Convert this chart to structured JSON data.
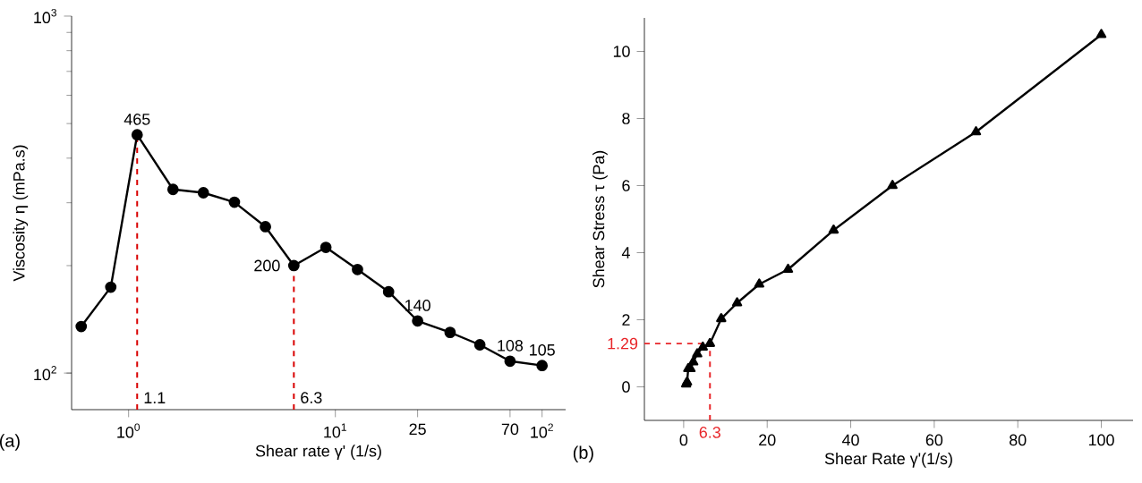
{
  "chart_data": [
    {
      "type": "line",
      "xlabel": "Shear rate γ' (1/s)",
      "ylabel": "Viscosity η (mPa.s)",
      "log": "xy",
      "marker": "circle",
      "line_style": "solid",
      "x": [
        0.59,
        0.82,
        1.1,
        1.64,
        2.3,
        3.25,
        4.59,
        6.3,
        9.0,
        12.8,
        18.1,
        25,
        35.9,
        50,
        70,
        100
      ],
      "series": [
        {
          "color": "#000000",
          "values": [
            135,
            174,
            465,
            327,
            320,
            301,
            257,
            200,
            225,
            195,
            169,
            140,
            130,
            120,
            108,
            105
          ],
          "value_labels": [
            null,
            null,
            "465",
            null,
            null,
            null,
            null,
            "200",
            null,
            null,
            null,
            "140",
            null,
            null,
            "108",
            "105"
          ]
        }
      ],
      "xlim": [
        0.53,
        130
      ],
      "ylim": [
        79,
        1000
      ],
      "xticks": [
        {
          "value": 1,
          "label": "10$^{0}$"
        },
        {
          "value": 10,
          "label": "10$^{1}$"
        },
        {
          "value": 100,
          "label": "10$^{2}$"
        },
        25,
        70
      ],
      "yticks": [
        {
          "value": 100,
          "label": "10$^{2}$"
        },
        {
          "value": 1000,
          "label": "10$^{3}$"
        }
      ],
      "annotations": [
        "(a)",
        {
          "text": "1.1",
          "x": 1.1,
          "y": 465
        },
        {
          "text": "6.3",
          "x": 6.3,
          "y": 200
        }
      ]
    },
    {
      "type": "line",
      "xlabel": "Shear Rate γ'(1/s)",
      "ylabel": "Shear Stress τ (Pa)",
      "marker": "triangle",
      "line_style": "solid",
      "x": [
        0.59,
        0.82,
        1.1,
        1.64,
        2.3,
        3.25,
        4.59,
        6.3,
        9.0,
        12.8,
        18.1,
        25,
        35.9,
        50,
        70,
        100
      ],
      "series": [
        {
          "color": "#000000",
          "values": [
            0.08,
            0.14,
            0.54,
            0.54,
            0.74,
            0.98,
            1.18,
            1.29,
            2.03,
            2.5,
            3.06,
            3.5,
            4.67,
            6.0,
            7.6,
            10.5
          ]
        }
      ],
      "xlim": [
        -9.4,
        107.6
      ],
      "ylim": [
        -1,
        11
      ],
      "xticks": [
        0,
        20,
        40,
        60,
        80,
        100
      ],
      "yticks": [
        0,
        2,
        4,
        6,
        8,
        10
      ],
      "ref_lines": [
        {
          "axis": "x",
          "value": 6.3,
          "label": "6.3",
          "color": "#e8262a",
          "line_style": "dashed"
        },
        {
          "axis": "y",
          "value": 1.29,
          "label": "1.29",
          "color": "#e8262a",
          "line_style": "dashed"
        }
      ],
      "annotations": [
        "(b)"
      ]
    }
  ]
}
